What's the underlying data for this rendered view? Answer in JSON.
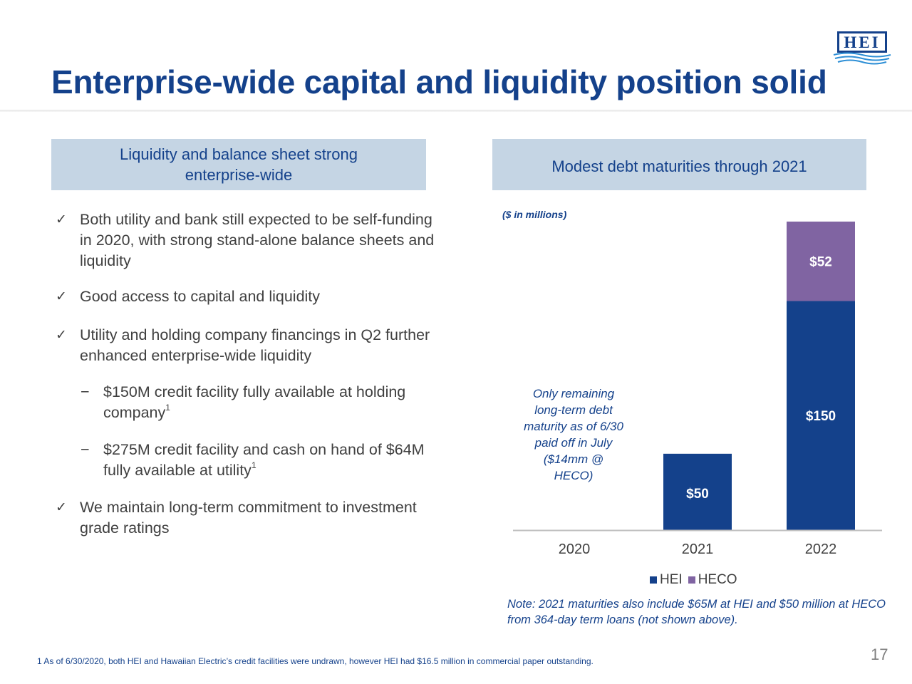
{
  "title": "Enterprise-wide capital and liquidity position solid",
  "logo_text": "HEI",
  "left_header": "Liquidity and balance sheet strong enterprise-wide",
  "right_header": "Modest debt maturities through 2021",
  "bullets": {
    "b1": "Both utility and bank still expected to be self-funding in 2020, with strong stand-alone balance sheets and liquidity",
    "b2": "Good access to capital and liquidity",
    "b3": "Utility and holding company financings in Q2 further enhanced enterprise-wide liquidity",
    "b4": "$150M credit facility fully available at holding company",
    "b4_sup": "1",
    "b5": "$275M credit facility and cash on hand of $64M fully available at utility",
    "b5_sup": "1",
    "b6": "We maintain long-term commitment to investment grade ratings",
    "check": "✓",
    "dash": "−"
  },
  "units_label": "($ in millions)",
  "side_note": "Only remaining long-term debt maturity as of 6/30 paid off in July ($14mm @ HECO)",
  "note": "Note: 2021 maturities also include $65M at HEI and $50 million at HECO from 364-day term loans (not shown above).",
  "footnote": "1  As of 6/30/2020, both HEI and Hawaiian Electric’s credit facilities were undrawn, however HEI had $16.5 million in commercial paper outstanding.",
  "page_number": "17",
  "chart_data": {
    "type": "bar",
    "stacked": true,
    "categories": [
      "2020",
      "2021",
      "2022"
    ],
    "series": [
      {
        "name": "HEI",
        "values": [
          0,
          50,
          150
        ],
        "labels": [
          "",
          "$50",
          "$150"
        ],
        "color": "#14418b"
      },
      {
        "name": "HECO",
        "values": [
          0,
          0,
          52
        ],
        "labels": [
          "",
          "",
          "$52"
        ],
        "color": "#8064a2"
      }
    ],
    "ylim": [
      0,
      202
    ],
    "grid": false,
    "legend": "bottom"
  }
}
